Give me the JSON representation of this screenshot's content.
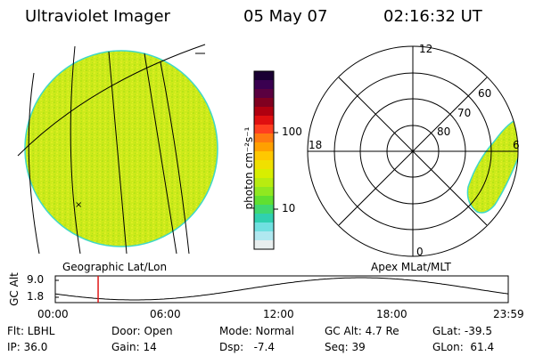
{
  "header": {
    "title": "Ultraviolet Imager",
    "date": "05 May 07",
    "time": "02:16:32 UT"
  },
  "left_panel": {
    "caption": "Geographic Lat/Lon"
  },
  "colorbar": {
    "unit_label": "photon cm⁻²s⁻¹",
    "ticks": [
      "100",
      "10"
    ],
    "colors_top_to_bottom": [
      "#1a0033",
      "#3a0050",
      "#5a0040",
      "#800020",
      "#b00010",
      "#e01010",
      "#ff4020",
      "#ff7a10",
      "#ffa000",
      "#ffc800",
      "#f0e000",
      "#d8ee00",
      "#b8ec10",
      "#90e820",
      "#60e030",
      "#40d870",
      "#30d0b0",
      "#70e0e0",
      "#b0e8f0",
      "#e8eeee"
    ]
  },
  "right_panel": {
    "caption": "Apex MLat/MLT",
    "mlt_labels": [
      "12",
      "18",
      "6",
      "0"
    ],
    "lat_labels": [
      "60",
      "70",
      "80"
    ]
  },
  "timeline": {
    "axis_label": "GC Alt",
    "y_ticks": [
      "9.0",
      "1.8"
    ],
    "x_ticks": [
      "00:00",
      "06:00",
      "12:00",
      "18:00",
      "23:59"
    ],
    "marker_time_hours": 2.27
  },
  "info": {
    "row1": {
      "flt": "Flt: LBHL",
      "door": "Door: Open",
      "mode": "Mode: Normal",
      "gc_alt": "GC Alt: 4.7 Re",
      "glat": "GLat: -39.5"
    },
    "row2": {
      "ip": "IP: 36.0",
      "gain": "Gain: 14",
      "dsp": "Dsp:   -7.4",
      "seq": "Seq: 39",
      "glon": "GLon:  61.4"
    }
  },
  "colors": {
    "earth_fill": "#ccea1a",
    "earth_edge": "#3ed8c8",
    "marker": "#e01818"
  }
}
